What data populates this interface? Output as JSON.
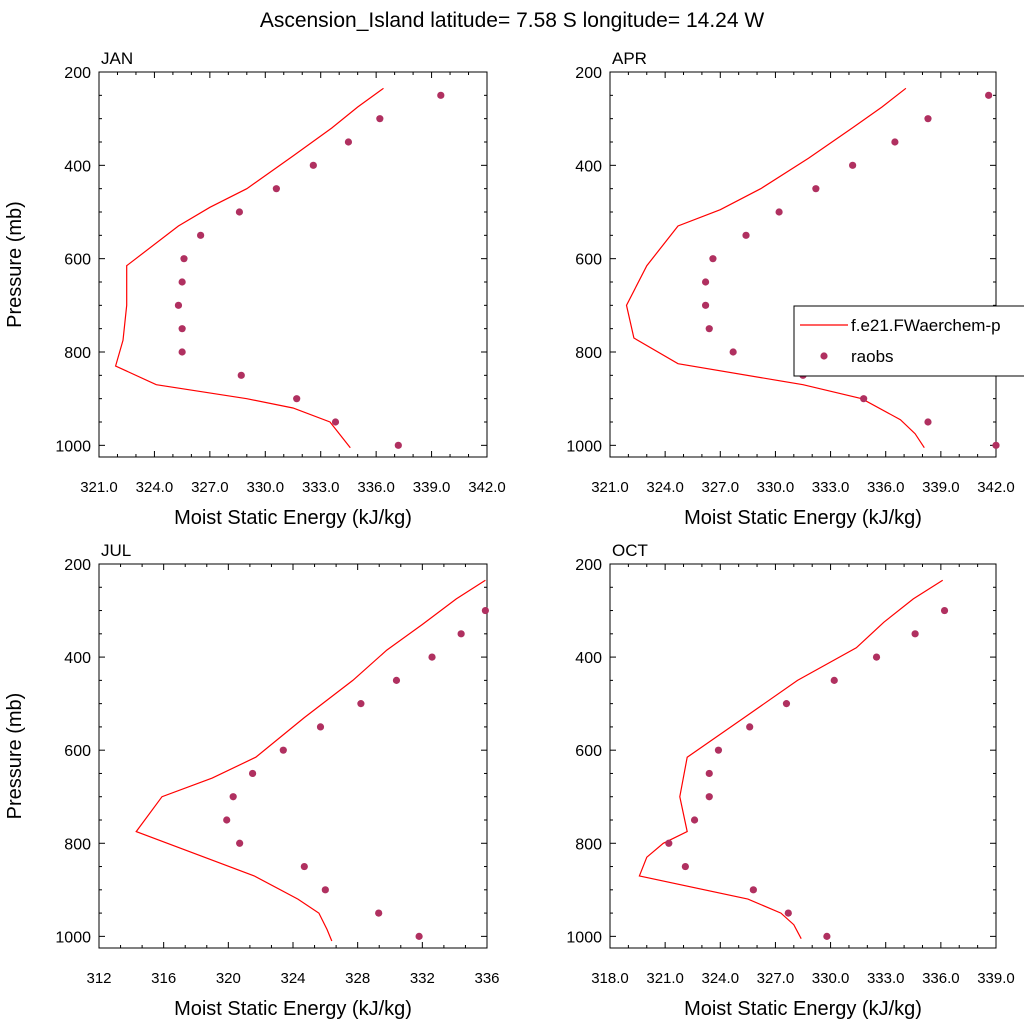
{
  "figure": {
    "title": "Ascension_Island  latitude= 7.58 S longitude= 14.24 W",
    "legend": {
      "model_label": "f.e21.FWaerchem-p",
      "obs_label": "raobs"
    },
    "colors": {
      "model_line": "#ff0000",
      "obs_marker": "#b03060",
      "axes": "#000000",
      "background": "#ffffff"
    }
  },
  "chart_data": [
    {
      "type": "line",
      "title": "JAN",
      "xlabel": "Moist Static Energy (kJ/kg)",
      "ylabel": "Pressure (mb)",
      "xlim": [
        321.0,
        342.0
      ],
      "xticks": [
        321.0,
        324.0,
        327.0,
        330.0,
        333.0,
        336.0,
        339.0,
        342.0
      ],
      "xtick_labels": [
        "321.0",
        "324.0",
        "327.0",
        "330.0",
        "333.0",
        "336.0",
        "339.0",
        "342.0"
      ],
      "ylim": [
        200,
        1025
      ],
      "yticks": [
        200,
        400,
        600,
        800,
        1000
      ],
      "ytick_labels": [
        "200",
        "400",
        "600",
        "800",
        "1000"
      ],
      "y_reversed": true,
      "series": [
        {
          "name": "f.e21.FWaerchem-p",
          "kind": "line",
          "points": [
            {
              "x": 336.4,
              "y": 235
            },
            {
              "x": 335.0,
              "y": 275
            },
            {
              "x": 333.6,
              "y": 320
            },
            {
              "x": 331.5,
              "y": 380
            },
            {
              "x": 329.0,
              "y": 450
            },
            {
              "x": 327.0,
              "y": 490
            },
            {
              "x": 325.3,
              "y": 530
            },
            {
              "x": 322.5,
              "y": 615
            },
            {
              "x": 322.5,
              "y": 700
            },
            {
              "x": 322.3,
              "y": 775
            },
            {
              "x": 321.9,
              "y": 830
            },
            {
              "x": 324.1,
              "y": 870
            },
            {
              "x": 329.0,
              "y": 900
            },
            {
              "x": 331.5,
              "y": 920
            },
            {
              "x": 333.5,
              "y": 950
            },
            {
              "x": 334.6,
              "y": 1005
            }
          ]
        },
        {
          "name": "raobs",
          "kind": "scatter",
          "points": [
            {
              "x": 339.5,
              "y": 250
            },
            {
              "x": 336.2,
              "y": 300
            },
            {
              "x": 334.5,
              "y": 350
            },
            {
              "x": 332.6,
              "y": 400
            },
            {
              "x": 330.6,
              "y": 450
            },
            {
              "x": 328.6,
              "y": 500
            },
            {
              "x": 326.5,
              "y": 550
            },
            {
              "x": 325.6,
              "y": 600
            },
            {
              "x": 325.5,
              "y": 650
            },
            {
              "x": 325.3,
              "y": 700
            },
            {
              "x": 325.5,
              "y": 750
            },
            {
              "x": 325.5,
              "y": 800
            },
            {
              "x": 328.7,
              "y": 850
            },
            {
              "x": 331.7,
              "y": 900
            },
            {
              "x": 333.8,
              "y": 950
            },
            {
              "x": 337.2,
              "y": 1000
            }
          ]
        }
      ]
    },
    {
      "type": "line",
      "title": "APR",
      "xlabel": "Moist Static Energy (kJ/kg)",
      "ylabel": "",
      "xlim": [
        321.0,
        342.0
      ],
      "xticks": [
        321.0,
        324.0,
        327.0,
        330.0,
        333.0,
        336.0,
        339.0,
        342.0
      ],
      "xtick_labels": [
        "321.0",
        "324.0",
        "327.0",
        "330.0",
        "333.0",
        "336.0",
        "339.0",
        "342.0"
      ],
      "ylim": [
        200,
        1025
      ],
      "yticks": [
        200,
        400,
        600,
        800,
        1000
      ],
      "ytick_labels": [
        "200",
        "400",
        "600",
        "800",
        "1000"
      ],
      "y_reversed": true,
      "legend_position": "right",
      "series": [
        {
          "name": "f.e21.FWaerchem-p",
          "kind": "line",
          "points": [
            {
              "x": 337.1,
              "y": 235
            },
            {
              "x": 335.8,
              "y": 275
            },
            {
              "x": 334.0,
              "y": 325
            },
            {
              "x": 331.8,
              "y": 385
            },
            {
              "x": 329.2,
              "y": 450
            },
            {
              "x": 327.0,
              "y": 495
            },
            {
              "x": 324.7,
              "y": 530
            },
            {
              "x": 323.0,
              "y": 615
            },
            {
              "x": 321.9,
              "y": 700
            },
            {
              "x": 322.3,
              "y": 770
            },
            {
              "x": 324.7,
              "y": 825
            },
            {
              "x": 331.5,
              "y": 870
            },
            {
              "x": 334.7,
              "y": 900
            },
            {
              "x": 336.8,
              "y": 945
            },
            {
              "x": 337.6,
              "y": 975
            },
            {
              "x": 338.1,
              "y": 1005
            }
          ]
        },
        {
          "name": "raobs",
          "kind": "scatter",
          "points": [
            {
              "x": 341.6,
              "y": 250
            },
            {
              "x": 338.3,
              "y": 300
            },
            {
              "x": 336.5,
              "y": 350
            },
            {
              "x": 334.2,
              "y": 400
            },
            {
              "x": 332.2,
              "y": 450
            },
            {
              "x": 330.2,
              "y": 500
            },
            {
              "x": 328.4,
              "y": 550
            },
            {
              "x": 326.6,
              "y": 600
            },
            {
              "x": 326.2,
              "y": 650
            },
            {
              "x": 326.2,
              "y": 700
            },
            {
              "x": 326.4,
              "y": 750
            },
            {
              "x": 327.7,
              "y": 800
            },
            {
              "x": 331.5,
              "y": 850
            },
            {
              "x": 334.8,
              "y": 900
            },
            {
              "x": 338.3,
              "y": 950
            },
            {
              "x": 342.0,
              "y": 1000
            }
          ]
        }
      ]
    },
    {
      "type": "line",
      "title": "JUL",
      "xlabel": "Moist Static Energy (kJ/kg)",
      "ylabel": "Pressure (mb)",
      "xlim": [
        312,
        336
      ],
      "xticks": [
        312,
        316,
        320,
        324,
        328,
        332,
        336
      ],
      "xtick_labels": [
        "312",
        "316",
        "320",
        "324",
        "328",
        "332",
        "336"
      ],
      "ylim": [
        200,
        1025
      ],
      "yticks": [
        200,
        400,
        600,
        800,
        1000
      ],
      "ytick_labels": [
        "200",
        "400",
        "600",
        "800",
        "1000"
      ],
      "y_reversed": true,
      "series": [
        {
          "name": "f.e21.FWaerchem-p",
          "kind": "line",
          "points": [
            {
              "x": 335.9,
              "y": 235
            },
            {
              "x": 334.1,
              "y": 275
            },
            {
              "x": 332.0,
              "y": 330
            },
            {
              "x": 329.8,
              "y": 385
            },
            {
              "x": 327.7,
              "y": 450
            },
            {
              "x": 324.7,
              "y": 530
            },
            {
              "x": 321.7,
              "y": 615
            },
            {
              "x": 319.0,
              "y": 660
            },
            {
              "x": 315.9,
              "y": 700
            },
            {
              "x": 314.3,
              "y": 775
            },
            {
              "x": 321.6,
              "y": 870
            },
            {
              "x": 324.3,
              "y": 920
            },
            {
              "x": 325.6,
              "y": 950
            },
            {
              "x": 326.1,
              "y": 985
            },
            {
              "x": 326.4,
              "y": 1010
            }
          ]
        },
        {
          "name": "raobs",
          "kind": "scatter",
          "points": [
            {
              "x": 335.9,
              "y": 300
            },
            {
              "x": 334.4,
              "y": 350
            },
            {
              "x": 332.6,
              "y": 400
            },
            {
              "x": 330.4,
              "y": 450
            },
            {
              "x": 328.2,
              "y": 500
            },
            {
              "x": 325.7,
              "y": 550
            },
            {
              "x": 323.4,
              "y": 600
            },
            {
              "x": 321.5,
              "y": 650
            },
            {
              "x": 320.3,
              "y": 700
            },
            {
              "x": 319.9,
              "y": 750
            },
            {
              "x": 320.7,
              "y": 800
            },
            {
              "x": 324.7,
              "y": 850
            },
            {
              "x": 326.0,
              "y": 900
            },
            {
              "x": 329.3,
              "y": 950
            },
            {
              "x": 331.8,
              "y": 1000
            }
          ]
        }
      ]
    },
    {
      "type": "line",
      "title": "OCT",
      "xlabel": "Moist Static Energy (kJ/kg)",
      "ylabel": "",
      "xlim": [
        318.0,
        339.0
      ],
      "xticks": [
        318.0,
        321.0,
        324.0,
        327.0,
        330.0,
        333.0,
        336.0,
        339.0
      ],
      "xtick_labels": [
        "318.0",
        "321.0",
        "324.0",
        "327.0",
        "330.0",
        "333.0",
        "336.0",
        "339.0"
      ],
      "ylim": [
        200,
        1025
      ],
      "yticks": [
        200,
        400,
        600,
        800,
        1000
      ],
      "ytick_labels": [
        "200",
        "400",
        "600",
        "800",
        "1000"
      ],
      "y_reversed": true,
      "series": [
        {
          "name": "f.e21.FWaerchem-p",
          "kind": "line",
          "points": [
            {
              "x": 336.1,
              "y": 235
            },
            {
              "x": 334.5,
              "y": 275
            },
            {
              "x": 332.9,
              "y": 325
            },
            {
              "x": 331.4,
              "y": 380
            },
            {
              "x": 328.2,
              "y": 450
            },
            {
              "x": 325.3,
              "y": 530
            },
            {
              "x": 322.2,
              "y": 615
            },
            {
              "x": 321.8,
              "y": 700
            },
            {
              "x": 322.2,
              "y": 775
            },
            {
              "x": 320.9,
              "y": 800
            },
            {
              "x": 320.0,
              "y": 830
            },
            {
              "x": 319.6,
              "y": 870
            },
            {
              "x": 325.5,
              "y": 920
            },
            {
              "x": 327.3,
              "y": 950
            },
            {
              "x": 328.0,
              "y": 975
            },
            {
              "x": 328.4,
              "y": 1005
            }
          ]
        },
        {
          "name": "raobs",
          "kind": "scatter",
          "points": [
            {
              "x": 336.2,
              "y": 300
            },
            {
              "x": 334.6,
              "y": 350
            },
            {
              "x": 332.5,
              "y": 400
            },
            {
              "x": 330.2,
              "y": 450
            },
            {
              "x": 327.6,
              "y": 500
            },
            {
              "x": 325.6,
              "y": 550
            },
            {
              "x": 323.9,
              "y": 600
            },
            {
              "x": 323.4,
              "y": 650
            },
            {
              "x": 323.4,
              "y": 700
            },
            {
              "x": 322.6,
              "y": 750
            },
            {
              "x": 321.2,
              "y": 800
            },
            {
              "x": 322.1,
              "y": 850
            },
            {
              "x": 325.8,
              "y": 900
            },
            {
              "x": 327.7,
              "y": 950
            },
            {
              "x": 329.8,
              "y": 1000
            }
          ]
        }
      ]
    }
  ]
}
